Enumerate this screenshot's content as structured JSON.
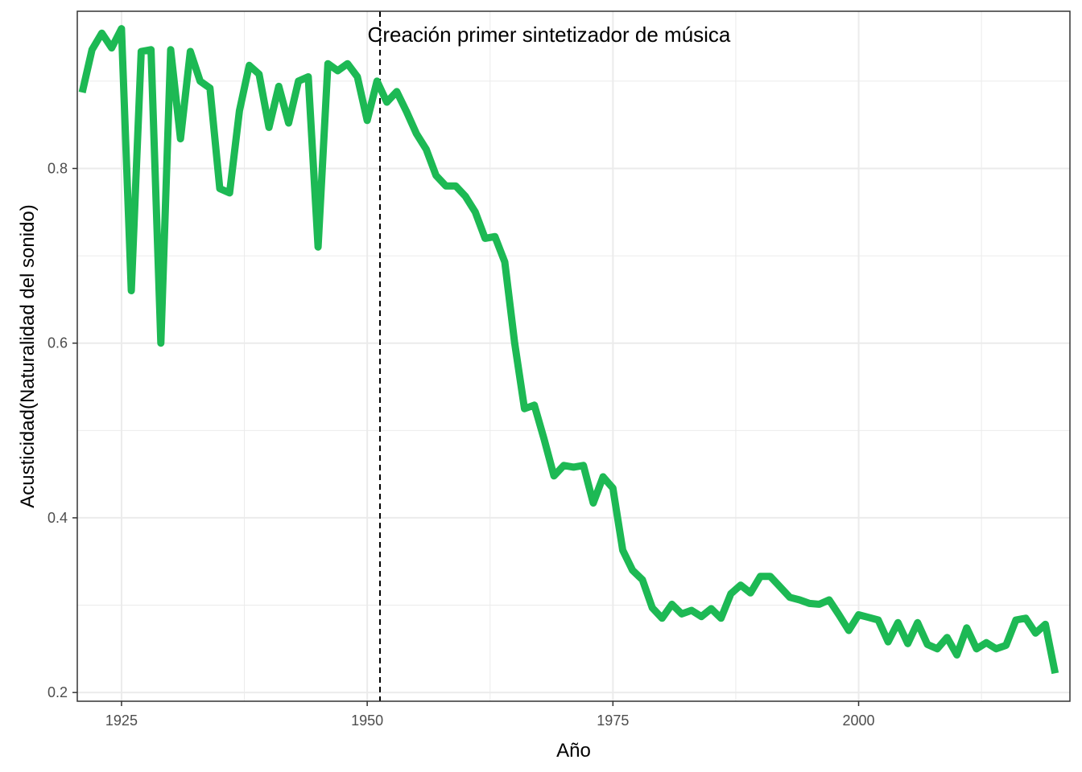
{
  "chart_data": {
    "type": "line",
    "title": "",
    "xlabel": "Año",
    "ylabel": "Acusticidad(Naturalidad del sonido)",
    "xlim": [
      1920.5,
      2021.5
    ],
    "ylim": [
      0.19,
      0.98
    ],
    "x_ticks": [
      1925,
      1950,
      1975,
      2000
    ],
    "y_ticks": [
      0.2,
      0.4,
      0.6,
      0.8
    ],
    "x_tick_labels": [
      "1925",
      "1950",
      "1975",
      "2000"
    ],
    "y_tick_labels": [
      "0.2",
      "0.4",
      "0.6",
      "0.8"
    ],
    "grid": true,
    "legend": "none",
    "colors": {
      "line": "#1DB954",
      "vline": "#000000",
      "grid": "#ebebeb"
    },
    "annotation": {
      "text": "Creación primer sintetizador de música",
      "x": 1968.5,
      "y": 0.945
    },
    "vline": {
      "x": 1951.3,
      "style": "dashed"
    },
    "series": [
      {
        "x": [
          1921,
          1922,
          1923,
          1924,
          1925,
          1926,
          1927,
          1928,
          1929,
          1930,
          1931,
          1932,
          1933,
          1934,
          1935,
          1936,
          1937,
          1938,
          1939,
          1940,
          1941,
          1942,
          1943,
          1944,
          1945,
          1946,
          1947,
          1948,
          1949,
          1950,
          1951,
          1952,
          1953,
          1954,
          1955,
          1956,
          1957,
          1958,
          1959,
          1960,
          1961,
          1962,
          1963,
          1964,
          1965,
          1966,
          1967,
          1968,
          1969,
          1970,
          1971,
          1972,
          1973,
          1974,
          1975,
          1976,
          1977,
          1978,
          1979,
          1980,
          1981,
          1982,
          1983,
          1984,
          1985,
          1986,
          1987,
          1988,
          1989,
          1990,
          1991,
          1992,
          1993,
          1994,
          1995,
          1996,
          1997,
          1998,
          1999,
          2000,
          2001,
          2002,
          2003,
          2004,
          2005,
          2006,
          2007,
          2008,
          2009,
          2010,
          2011,
          2012,
          2013,
          2014,
          2015,
          2016,
          2017,
          2018,
          2019,
          2020
        ],
        "values": [
          0.887,
          0.936,
          0.955,
          0.938,
          0.96,
          0.66,
          0.934,
          0.936,
          0.6,
          0.936,
          0.834,
          0.934,
          0.9,
          0.892,
          0.777,
          0.772,
          0.866,
          0.918,
          0.908,
          0.847,
          0.894,
          0.852,
          0.9,
          0.905,
          0.71,
          0.92,
          0.912,
          0.92,
          0.905,
          0.855,
          0.9,
          0.876,
          0.888,
          0.865,
          0.84,
          0.822,
          0.792,
          0.78,
          0.78,
          0.768,
          0.75,
          0.72,
          0.722,
          0.693,
          0.6,
          0.525,
          0.529,
          0.49,
          0.448,
          0.46,
          0.458,
          0.46,
          0.417,
          0.447,
          0.434,
          0.363,
          0.34,
          0.329,
          0.297,
          0.285,
          0.301,
          0.29,
          0.294,
          0.287,
          0.296,
          0.285,
          0.313,
          0.323,
          0.314,
          0.333,
          0.333,
          0.321,
          0.309,
          0.306,
          0.302,
          0.301,
          0.306,
          0.289,
          0.271,
          0.289,
          0.286,
          0.283,
          0.258,
          0.28,
          0.256,
          0.28,
          0.255,
          0.25,
          0.263,
          0.243,
          0.274,
          0.25,
          0.257,
          0.25,
          0.254,
          0.283,
          0.285,
          0.268,
          0.278,
          0.222
        ]
      }
    ]
  }
}
